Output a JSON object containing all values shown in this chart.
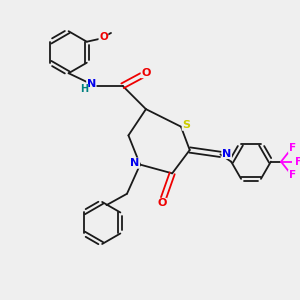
{
  "bg_color": "#efefef",
  "bond_color": "#1a1a1a",
  "atom_colors": {
    "N": "#0000ee",
    "O": "#ee0000",
    "S": "#cccc00",
    "F": "#ff00ff",
    "H": "#008080"
  },
  "ring_lw": 1.3,
  "bond_lw": 1.3
}
